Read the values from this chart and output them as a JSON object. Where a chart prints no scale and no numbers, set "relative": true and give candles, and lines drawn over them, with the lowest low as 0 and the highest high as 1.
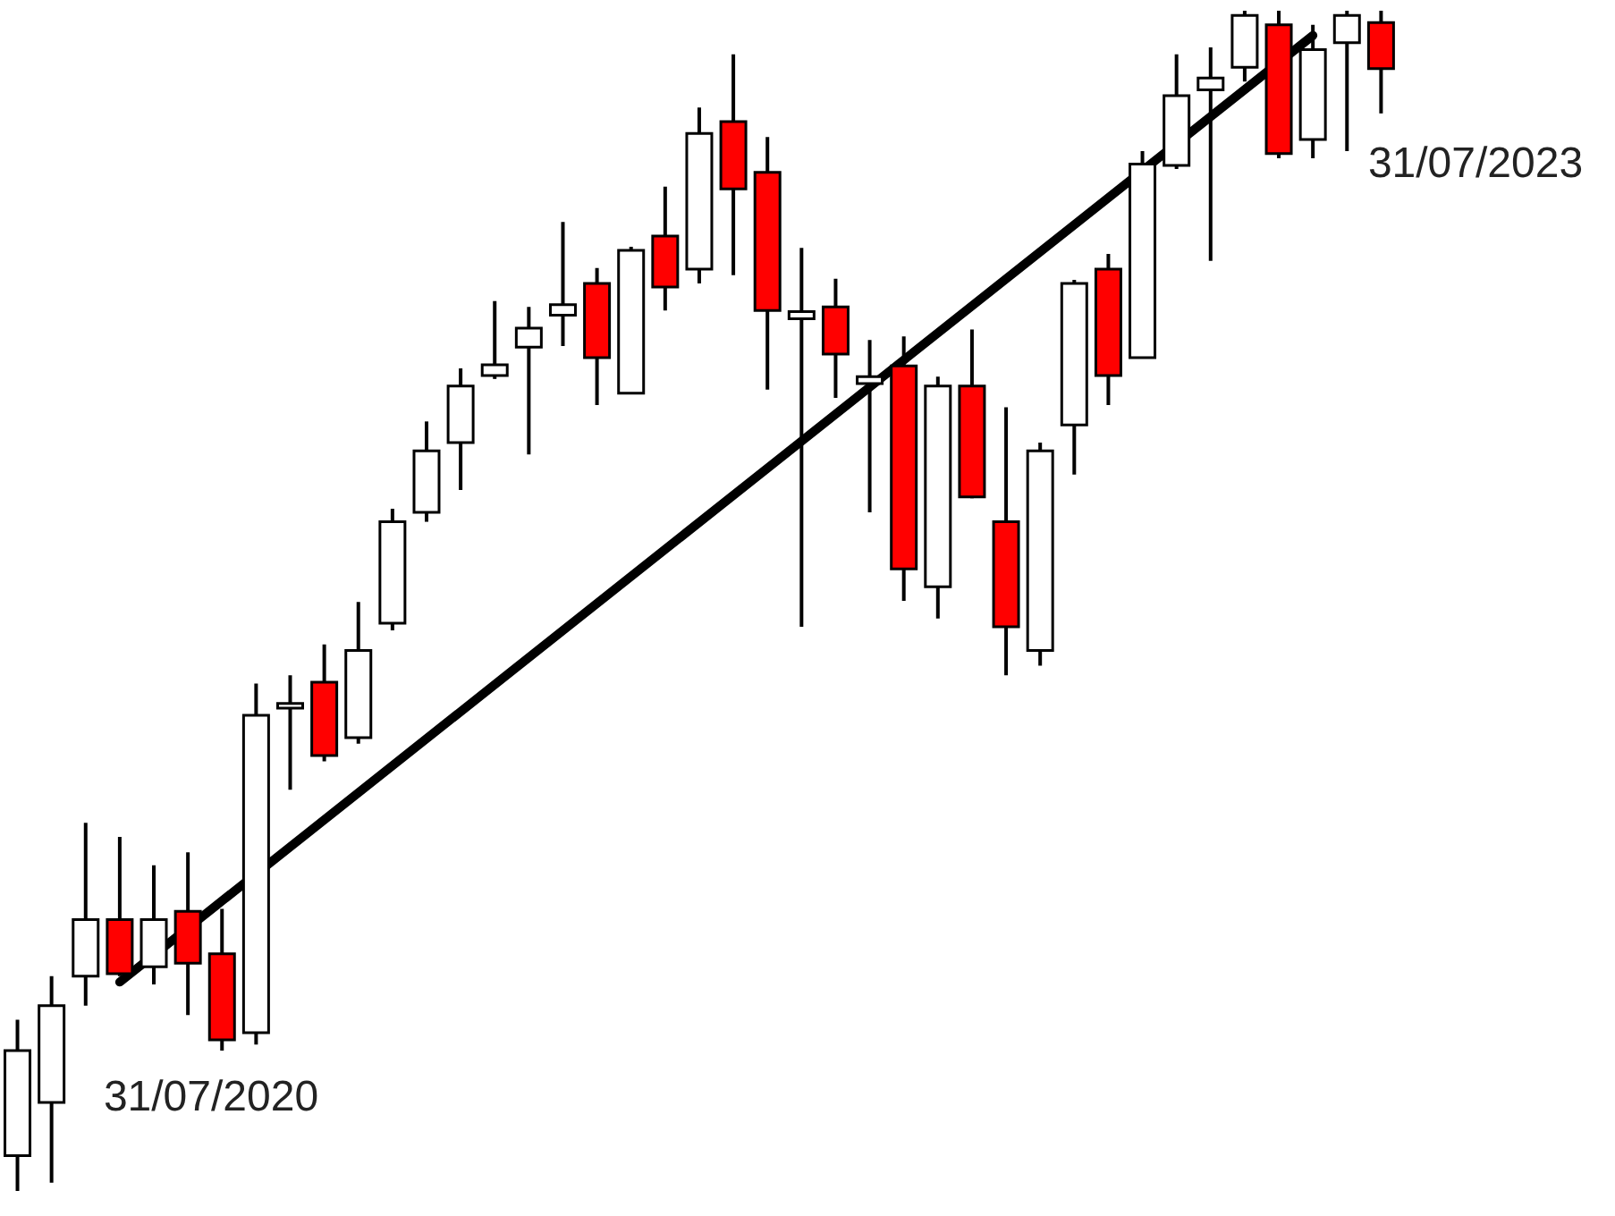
{
  "chart_data": {
    "type": "candlestick",
    "relative": true,
    "categories": [
      null,
      null,
      null,
      null,
      null,
      null,
      null,
      null,
      null,
      null,
      null,
      null,
      null,
      null,
      null,
      null,
      null,
      null,
      null,
      null,
      null,
      null,
      null,
      null,
      null,
      null,
      null,
      null,
      null,
      null,
      null,
      null,
      null,
      null,
      null,
      null,
      null,
      null,
      null,
      null,
      null
    ],
    "ohlc": [
      [
        0.03,
        0.145,
        0,
        0.119
      ],
      [
        0.075,
        0.182,
        0.007,
        0.157
      ],
      [
        0.182,
        0.312,
        0.157,
        0.23
      ],
      [
        0.23,
        0.3,
        0.182,
        0.184
      ],
      [
        0.19,
        0.276,
        0.175,
        0.23
      ],
      [
        0.237,
        0.287,
        0.149,
        0.193
      ],
      [
        0.201,
        0.239,
        0.119,
        0.128
      ],
      [
        0.134,
        0.43,
        0.124,
        0.403
      ],
      [
        0.409,
        0.437,
        0.34,
        0.413
      ],
      [
        0.431,
        0.463,
        0.364,
        0.369
      ],
      [
        0.384,
        0.499,
        0.379,
        0.458
      ],
      [
        0.481,
        0.578,
        0.475,
        0.567
      ],
      [
        0.575,
        0.652,
        0.567,
        0.627
      ],
      [
        0.634,
        0.697,
        0.594,
        0.682
      ],
      [
        0.691,
        0.754,
        0.688,
        0.7
      ],
      [
        0.715,
        0.749,
        0.624,
        0.731
      ],
      [
        0.742,
        0.821,
        0.716,
        0.751
      ],
      [
        0.769,
        0.782,
        0.666,
        0.706
      ],
      [
        0.676,
        0.8,
        0.675,
        0.797
      ],
      [
        0.809,
        0.851,
        0.746,
        0.766
      ],
      [
        0.781,
        0.918,
        0.769,
        0.896
      ],
      [
        0.906,
        0.963,
        0.776,
        0.849
      ],
      [
        0.863,
        0.893,
        0.679,
        0.746
      ],
      [
        0.739,
        0.799,
        0.478,
        0.745
      ],
      [
        0.749,
        0.773,
        0.672,
        0.709
      ],
      [
        0.684,
        0.721,
        0.575,
        0.69
      ],
      [
        0.699,
        0.724,
        0.5,
        0.527
      ],
      [
        0.512,
        0.69,
        0.485,
        0.682
      ],
      [
        0.682,
        0.73,
        0.587,
        0.588
      ],
      [
        0.567,
        0.664,
        0.437,
        0.478
      ],
      [
        0.458,
        0.634,
        0.445,
        0.627
      ],
      [
        0.649,
        0.772,
        0.607,
        0.769
      ],
      [
        0.781,
        0.794,
        0.666,
        0.691
      ],
      [
        0.706,
        0.881,
        0.706,
        0.87
      ],
      [
        0.869,
        0.963,
        0.866,
        0.928
      ],
      [
        0.933,
        0.969,
        0.788,
        0.943
      ],
      [
        0.952,
        1,
        0.94,
        0.996
      ],
      [
        0.988,
        1,
        0.875,
        0.879
      ],
      [
        0.891,
        0.988,
        0.875,
        0.967
      ],
      [
        0.973,
        1,
        0.881,
        0.996
      ],
      [
        0.99,
        1,
        0.913,
        0.951
      ]
    ],
    "colors": [
      "#ffffff",
      "#ffffff",
      "#ffffff",
      "#ff0000",
      "#ffffff",
      "#ff0000",
      "#ff0000",
      "#ffffff",
      "#ffffff",
      "#ff0000",
      "#ffffff",
      "#ffffff",
      "#ffffff",
      "#ffffff",
      "#ffffff",
      "#ffffff",
      "#ffffff",
      "#ff0000",
      "#ffffff",
      "#ff0000",
      "#ffffff",
      "#ff0000",
      "#ff0000",
      "#ffffff",
      "#ff0000",
      "#ffffff",
      "#ff0000",
      "#ffffff",
      "#ff0000",
      "#ff0000",
      "#ffffff",
      "#ffffff",
      "#ff0000",
      "#ffffff",
      "#ffffff",
      "#ffffff",
      "#ffffff",
      "#ff0000",
      "#ffffff",
      "#ffffff",
      "#ff0000"
    ],
    "series": [
      {
        "type": "line",
        "values": [
          null,
          null,
          null,
          0.177,
          null,
          null,
          null,
          null,
          null,
          null,
          null,
          null,
          null,
          null,
          null,
          null,
          null,
          null,
          null,
          null,
          null,
          null,
          null,
          null,
          null,
          null,
          null,
          null,
          null,
          null,
          null,
          null,
          null,
          null,
          null,
          null,
          null,
          null,
          0.979,
          null,
          null
        ],
        "color": "#000000"
      }
    ],
    "annotations": [
      "31/07/2020",
      "31/07/2023"
    ]
  }
}
